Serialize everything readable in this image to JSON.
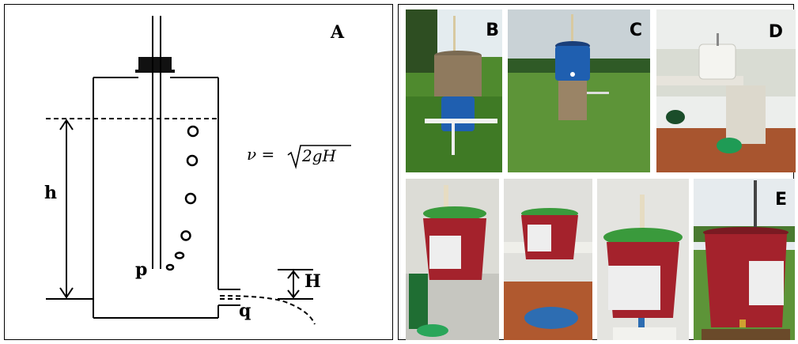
{
  "panel_a": {
    "label": "A",
    "symbol_h": "h",
    "symbol_p": "p",
    "symbol_H": "H",
    "symbol_q": "q",
    "formula_lhs": "ν = ",
    "formula_radicand": "2gH"
  },
  "photos": {
    "b_label": "B",
    "c_label": "C",
    "d_label": "D",
    "e_label": "E"
  },
  "colors": {
    "line": "#000000",
    "grass": "#4f8a2e",
    "sky": "#dfe7ea",
    "tile_floor": "#b0592f",
    "bucket_red": "#a4222c",
    "lid_green": "#3a9a3c",
    "tank_brown": "#8f7a5e",
    "tank_blue": "#1f5fb0"
  }
}
